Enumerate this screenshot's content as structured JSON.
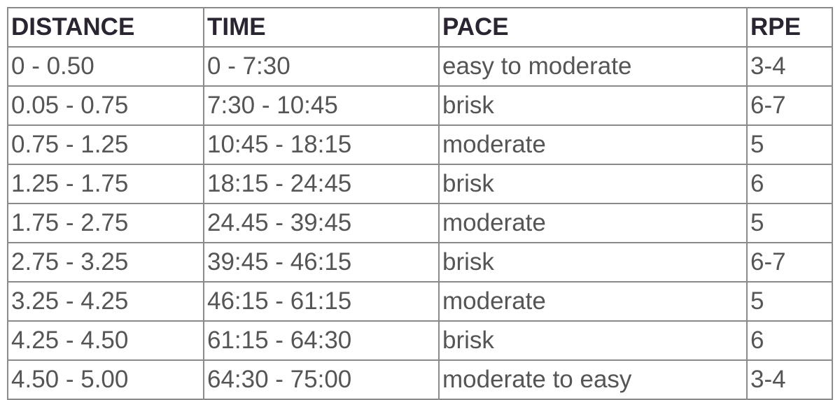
{
  "table": {
    "headers": [
      "DISTANCE",
      "TIME",
      "PACE",
      "RPE"
    ],
    "rows": [
      [
        "0 - 0.50",
        "0 - 7:30",
        "easy to moderate",
        "3-4"
      ],
      [
        "0.05 - 0.75",
        "7:30 - 10:45",
        "brisk",
        "6-7"
      ],
      [
        "0.75 - 1.25",
        "10:45 - 18:15",
        "moderate",
        "5"
      ],
      [
        "1.25 - 1.75",
        "18:15 - 24:45",
        "brisk",
        "6"
      ],
      [
        "1.75 - 2.75",
        "24.45 - 39:45",
        "moderate",
        "5"
      ],
      [
        "2.75 - 3.25",
        "39:45 - 46:15",
        "brisk",
        "6-7"
      ],
      [
        "3.25 - 4.25",
        "46:15 - 61:15",
        "moderate",
        "5"
      ],
      [
        "4.25 - 4.50",
        "61:15 - 64:30",
        "brisk",
        "6"
      ],
      [
        "4.50 - 5.00",
        "64:30 - 75:00",
        "moderate to easy",
        "3-4"
      ]
    ]
  }
}
